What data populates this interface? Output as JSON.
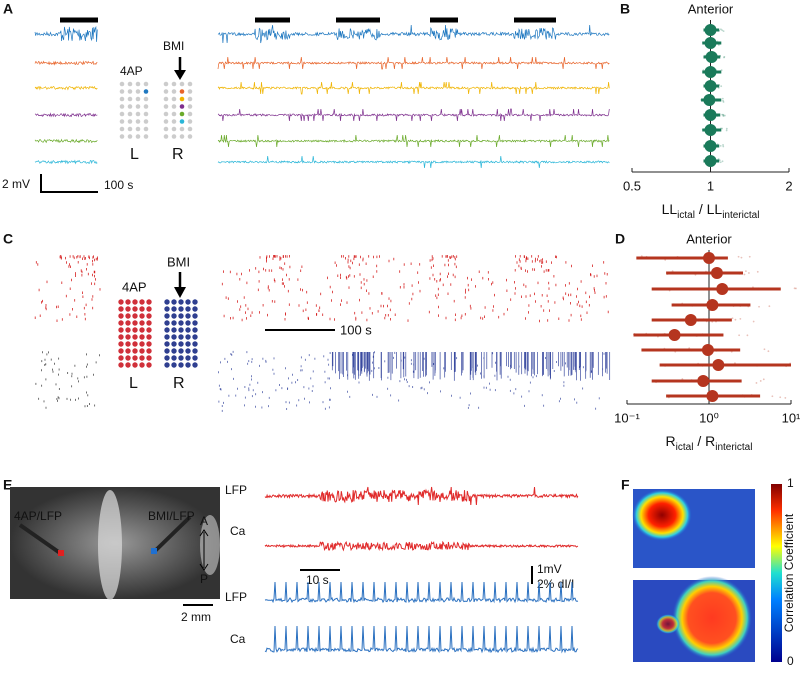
{
  "chart_data": [
    {
      "type": "forest",
      "panel_label": "B",
      "title": "Anterior",
      "color": "#1a7a5a",
      "values": [
        1.0,
        1.0,
        1.01,
        1.0,
        1.0,
        0.99,
        1.0,
        1.0,
        1.0,
        1.0
      ],
      "lower": [
        0.94,
        0.93,
        0.94,
        0.93,
        0.94,
        0.92,
        0.94,
        0.93,
        0.94,
        0.94
      ],
      "upper": [
        1.08,
        1.1,
        1.09,
        1.1,
        1.08,
        1.1,
        1.09,
        1.1,
        1.08,
        1.08
      ],
      "xlim": [
        0.5,
        2
      ],
      "xticks": [
        0.5,
        1,
        2
      ],
      "log_x": true,
      "reference": 1,
      "xlabel": [
        {
          "text": "LL"
        },
        {
          "text": "ictal",
          "sub": true
        },
        {
          "text": " / LL"
        },
        {
          "text": "interictal",
          "sub": true
        }
      ]
    },
    {
      "type": "forest",
      "panel_label": "D",
      "title": "Anterior",
      "color": "#b5351f",
      "values": [
        1.0,
        1.25,
        1.45,
        1.1,
        0.6,
        0.38,
        0.97,
        1.3,
        0.85,
        1.1
      ],
      "lower": [
        0.13,
        0.3,
        0.2,
        0.35,
        0.2,
        0.12,
        0.15,
        0.25,
        0.2,
        0.3
      ],
      "upper": [
        1.7,
        2.6,
        7.5,
        3.2,
        1.9,
        1.5,
        2.4,
        10,
        2.5,
        4.2
      ],
      "xlim": [
        0.1,
        10
      ],
      "xticks": [
        {
          "value": 0.1,
          "label": "10⁻¹"
        },
        {
          "value": 1,
          "label": "10⁰"
        },
        {
          "value": 10,
          "label": "10¹"
        }
      ],
      "log_x": true,
      "reference": 1,
      "xlabel": [
        {
          "text": "R"
        },
        {
          "text": "ictal",
          "sub": true
        },
        {
          "text": " / R"
        },
        {
          "text": "interictal",
          "sub": true
        }
      ]
    }
  ],
  "panels": {
    "A": {
      "label": "A",
      "left": "4AP",
      "right": "BMI",
      "L": "L",
      "R": "R",
      "scale_y": "2 mV",
      "scale_x": "100 s"
    },
    "C": {
      "label": "C",
      "left": "4AP",
      "right": "BMI",
      "L": "L",
      "R": "R",
      "scale_x": "100 s"
    },
    "E": {
      "label": "E",
      "left_probe": "4AP/LFP",
      "right_probe": "BMI/LFP",
      "anterior": "A",
      "posterior": "P",
      "scale_mm": "2 mm",
      "trace_labels": [
        "LFP",
        "Ca",
        "LFP",
        "Ca"
      ],
      "scale_time": "10 s",
      "scale_mv": "1mV",
      "scale_df": "2% dI/I"
    },
    "F": {
      "label": "F",
      "cbar_max": "1",
      "cbar_min": "0",
      "cbar_label": "Correlation Coefficient"
    }
  }
}
